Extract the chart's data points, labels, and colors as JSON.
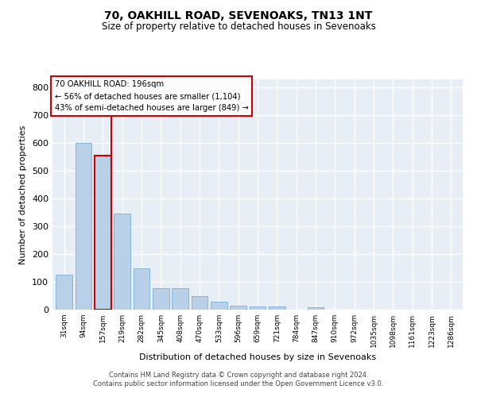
{
  "title": "70, OAKHILL ROAD, SEVENOAKS, TN13 1NT",
  "subtitle": "Size of property relative to detached houses in Sevenoaks",
  "xlabel": "Distribution of detached houses by size in Sevenoaks",
  "ylabel": "Number of detached properties",
  "categories": [
    "31sqm",
    "94sqm",
    "157sqm",
    "219sqm",
    "282sqm",
    "345sqm",
    "408sqm",
    "470sqm",
    "533sqm",
    "596sqm",
    "659sqm",
    "721sqm",
    "784sqm",
    "847sqm",
    "910sqm",
    "972sqm",
    "1035sqm",
    "1098sqm",
    "1161sqm",
    "1223sqm",
    "1286sqm"
  ],
  "values": [
    125,
    600,
    555,
    347,
    150,
    77,
    77,
    50,
    30,
    13,
    12,
    12,
    0,
    8,
    0,
    0,
    0,
    0,
    0,
    0,
    0
  ],
  "bar_color": "#b8d0e8",
  "bar_edge_color": "#7aafd4",
  "highlight_bar_index": 2,
  "highlight_edge_color": "#cc0000",
  "annotation_text_line1": "70 OAKHILL ROAD: 196sqm",
  "annotation_text_line2": "← 56% of detached houses are smaller (1,104)",
  "annotation_text_line3": "43% of semi-detached houses are larger (849) →",
  "annotation_box_color": "#ffffff",
  "annotation_box_edge_color": "#cc0000",
  "bg_color": "#e8eef5",
  "grid_color": "#ffffff",
  "ylim": [
    0,
    830
  ],
  "yticks": [
    0,
    100,
    200,
    300,
    400,
    500,
    600,
    700,
    800
  ],
  "footer_line1": "Contains HM Land Registry data © Crown copyright and database right 2024.",
  "footer_line2": "Contains public sector information licensed under the Open Government Licence v3.0."
}
